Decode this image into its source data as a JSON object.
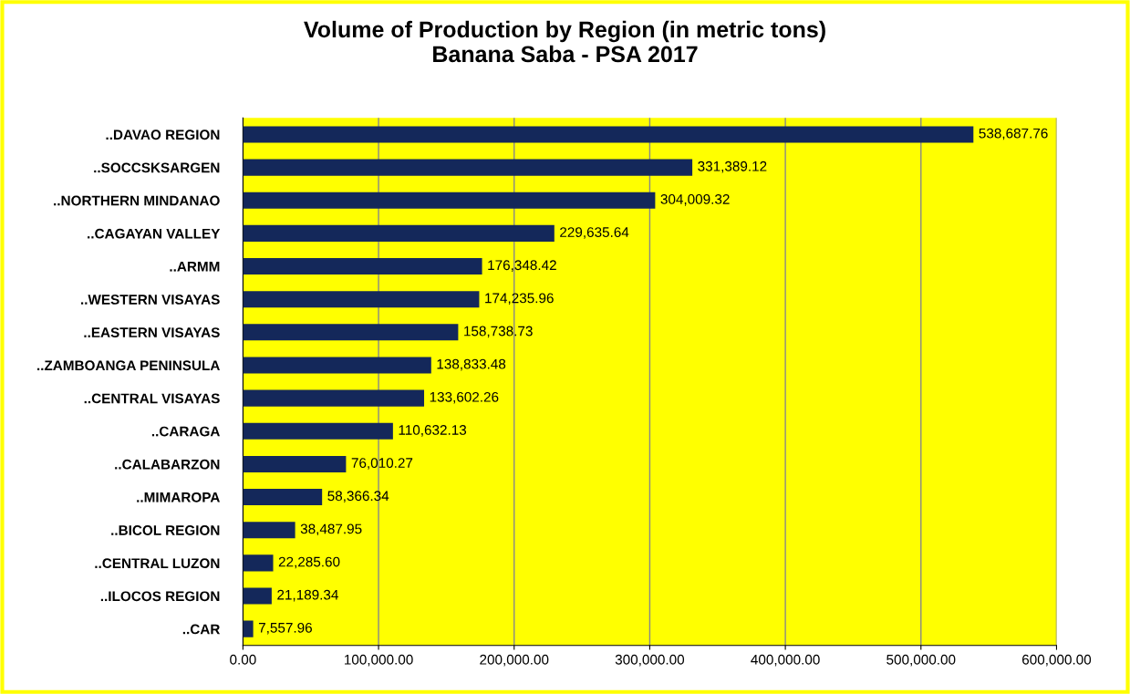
{
  "chart_data": {
    "type": "bar",
    "orientation": "horizontal",
    "title": "Volume of Production by Region (in metric tons)\nBanana Saba - PSA 2017",
    "categories": [
      "..DAVAO REGION",
      "..SOCCSKSARGEN",
      "..NORTHERN MINDANAO",
      "..CAGAYAN VALLEY",
      "..ARMM",
      "..WESTERN VISAYAS",
      "..EASTERN VISAYAS",
      "..ZAMBOANGA PENINSULA",
      "..CENTRAL VISAYAS",
      "..CARAGA",
      "..CALABARZON",
      "..MIMAROPA",
      "..BICOL REGION",
      "..CENTRAL LUZON",
      "..ILOCOS REGION",
      "..CAR"
    ],
    "values": [
      538687.76,
      331389.12,
      304009.32,
      229635.64,
      176348.42,
      174235.96,
      158738.73,
      138833.48,
      133602.26,
      110632.13,
      76010.27,
      58366.34,
      38487.95,
      22285.6,
      21189.34,
      7557.96
    ],
    "value_labels": [
      "538,687.76",
      "331,389.12",
      "304,009.32",
      "229,635.64",
      "176,348.42",
      "174,235.96",
      "158,738.73",
      "138,833.48",
      "133,602.26",
      "110,632.13",
      "76,010.27",
      "58,366.34",
      "38,487.95",
      "22,285.60",
      "21,189.34",
      "7,557.96"
    ],
    "color": "#14285a",
    "xlim": [
      0,
      600000
    ],
    "xticks": [
      {
        "value": 0,
        "label": "0.00"
      },
      {
        "value": 100000,
        "label": "100,000.00"
      },
      {
        "value": 200000,
        "label": "200,000.00"
      },
      {
        "value": 300000,
        "label": "300,000.00"
      },
      {
        "value": 400000,
        "label": "400,000.00"
      },
      {
        "value": 500000,
        "label": "500,000.00"
      },
      {
        "value": 600000,
        "label": "600,000.00"
      }
    ],
    "grid": "x"
  }
}
